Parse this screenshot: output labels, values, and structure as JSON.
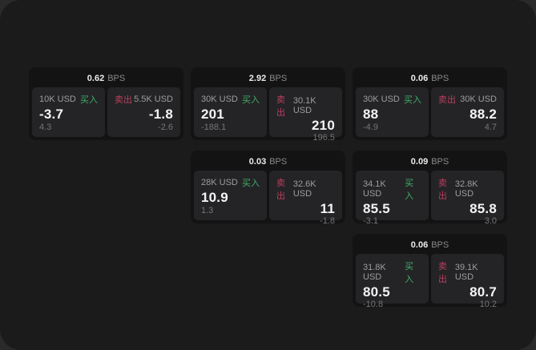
{
  "colors": {
    "window_bg": "#1b1b1b",
    "card_bg": "#131314",
    "panel_bg": "#242426",
    "buy_green": "#3fae68",
    "sell_red": "#bd3e5e"
  },
  "labels": {
    "bps": "BPS",
    "buy": "买入",
    "sell": "卖出"
  },
  "cards": [
    {
      "bps": "0.62",
      "buy": {
        "amount": "10K USD",
        "value": "-3.7",
        "delta": "4.3"
      },
      "sell": {
        "amount": "5.5K USD",
        "value": "-1.8",
        "delta": "-2.6"
      }
    },
    {
      "bps": "2.92",
      "buy": {
        "amount": "30K USD",
        "value": "201",
        "delta": "-188.1"
      },
      "sell": {
        "amount": "30.1K USD",
        "value": "210",
        "delta": "196.5"
      }
    },
    {
      "bps": "0.06",
      "buy": {
        "amount": "30K USD",
        "value": "88",
        "delta": "-4.9"
      },
      "sell": {
        "amount": "30K USD",
        "value": "88.2",
        "delta": "4.7"
      }
    },
    {
      "bps": "0.03",
      "buy": {
        "amount": "28K USD",
        "value": "10.9",
        "delta": "1.3"
      },
      "sell": {
        "amount": "32.6K USD",
        "value": "11",
        "delta": "-1.8"
      }
    },
    {
      "bps": "0.09",
      "buy": {
        "amount": "34.1K USD",
        "value": "85.5",
        "delta": "-3.1"
      },
      "sell": {
        "amount": "32.8K USD",
        "value": "85.8",
        "delta": "3.0"
      }
    },
    {
      "bps": "0.06",
      "buy": {
        "amount": "31.8K USD",
        "value": "80.5",
        "delta": "-10.8"
      },
      "sell": {
        "amount": "39.1K USD",
        "value": "80.7",
        "delta": "10.2"
      }
    }
  ]
}
